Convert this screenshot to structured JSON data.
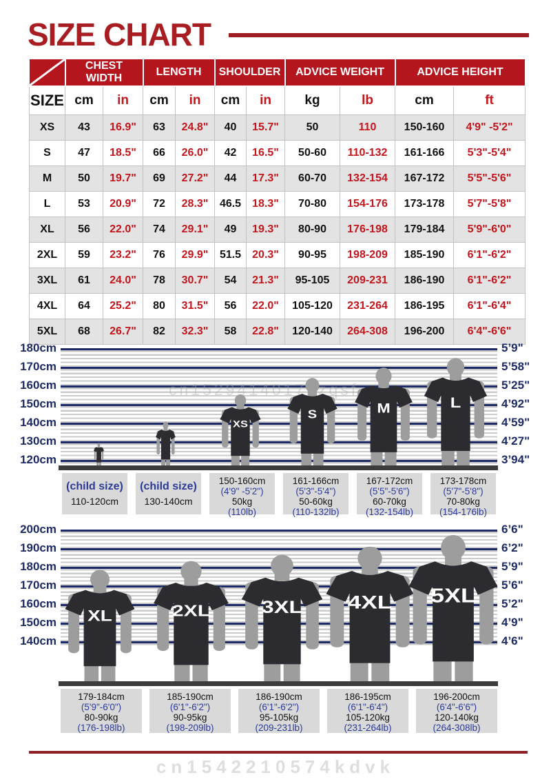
{
  "title": "SIZE CHART",
  "table": {
    "groups": [
      {
        "label": "CHEST WIDTH",
        "span": 2
      },
      {
        "label": "LENGTH",
        "span": 2
      },
      {
        "label": "SHOULDER",
        "span": 2
      },
      {
        "label": "ADVICE WEIGHT",
        "span": 2
      },
      {
        "label": "ADVICE HEIGHT",
        "span": 2
      }
    ],
    "subheader": [
      "SIZE",
      "cm",
      "in",
      "cm",
      "in",
      "cm",
      "in",
      "kg",
      "lb",
      "cm",
      "ft"
    ],
    "rows": [
      [
        "XS",
        "43",
        "16.9\"",
        "63",
        "24.8\"",
        "40",
        "15.7\"",
        "50",
        "110",
        "150-160",
        "4'9\" -5'2\""
      ],
      [
        "S",
        "47",
        "18.5\"",
        "66",
        "26.0\"",
        "42",
        "16.5\"",
        "50-60",
        "110-132",
        "161-166",
        "5'3\"-5'4\""
      ],
      [
        "M",
        "50",
        "19.7\"",
        "69",
        "27.2\"",
        "44",
        "17.3\"",
        "60-70",
        "132-154",
        "167-172",
        "5'5\"-5'6\""
      ],
      [
        "L",
        "53",
        "20.9\"",
        "72",
        "28.3\"",
        "46.5",
        "18.3\"",
        "70-80",
        "154-176",
        "173-178",
        "5'7\"-5'8\""
      ],
      [
        "XL",
        "56",
        "22.0\"",
        "74",
        "29.1\"",
        "49",
        "19.3\"",
        "80-90",
        "176-198",
        "179-184",
        "5'9\"-6'0\""
      ],
      [
        "2XL",
        "59",
        "23.2\"",
        "76",
        "29.9\"",
        "51.5",
        "20.3\"",
        "90-95",
        "198-209",
        "185-190",
        "6'1\"-6'2\""
      ],
      [
        "3XL",
        "61",
        "24.0\"",
        "78",
        "30.7\"",
        "54",
        "21.3\"",
        "95-105",
        "209-231",
        "186-190",
        "6'1\"-6'2\""
      ],
      [
        "4XL",
        "64",
        "25.2\"",
        "80",
        "31.5\"",
        "56",
        "22.0\"",
        "105-120",
        "231-264",
        "186-195",
        "6'1\"-6'4\""
      ],
      [
        "5XL",
        "68",
        "26.7\"",
        "82",
        "32.3\"",
        "58",
        "22.8\"",
        "120-140",
        "264-308",
        "196-200",
        "6'4\"-6'6\""
      ]
    ]
  },
  "diagram1": {
    "left_labels": [
      "180cm",
      "170cm",
      "160cm",
      "150cm",
      "140cm",
      "130cm",
      "120cm"
    ],
    "right_labels": [
      "5’9\"",
      "5’58\"",
      "5’25\"",
      "4’92\"",
      "4’59\"",
      "4’27\"",
      "3’94\""
    ],
    "watermark": "cn15294140179zqsf",
    "figures": [
      {
        "label": ""
      },
      {
        "label": ""
      },
      {
        "label": "XS"
      },
      {
        "label": "S"
      },
      {
        "label": "M"
      },
      {
        "label": "L"
      }
    ],
    "boxes": [
      {
        "child": true,
        "lines": [
          "(child size)",
          "110-120cm"
        ]
      },
      {
        "child": true,
        "lines": [
          "(child size)",
          "130-140cm"
        ]
      },
      {
        "lines": [
          "150-160cm",
          "(4'9\" -5'2\")",
          "50kg",
          "(110lb)"
        ]
      },
      {
        "lines": [
          "161-166cm",
          "(5'3\"-5'4\")",
          "50-60kg",
          "(110-132lb)"
        ]
      },
      {
        "lines": [
          "167-172cm",
          "(5'5\"-5'6\")",
          "60-70kg",
          "(132-154lb)"
        ]
      },
      {
        "lines": [
          "173-178cm",
          "(5'7\"-5'8\")",
          "70-80kg",
          "(154-176lb)"
        ]
      }
    ]
  },
  "diagram2": {
    "left_labels": [
      "200cm",
      "190cm",
      "180cm",
      "170cm",
      "160cm",
      "150cm",
      "140cm"
    ],
    "right_labels": [
      "6’6\"",
      "6’2\"",
      "5’9\"",
      "5’6\"",
      "5’2\"",
      "4’9\"",
      "4’6\""
    ],
    "figures": [
      {
        "label": "XL"
      },
      {
        "label": "2XL"
      },
      {
        "label": "3XL"
      },
      {
        "label": "4XL"
      },
      {
        "label": "5XL"
      }
    ],
    "boxes": [
      {
        "lines": [
          "179-184cm",
          "(5'9\"-6'0\")",
          "80-90kg",
          "(176-198lb)"
        ]
      },
      {
        "lines": [
          "185-190cm",
          "(6'1\"-6'2\")",
          "90-95kg",
          "(198-209lb)"
        ]
      },
      {
        "lines": [
          "186-190cm",
          "(6'1\"-6'2\")",
          "95-105kg",
          "(209-231lb)"
        ]
      },
      {
        "lines": [
          "186-195cm",
          "(6'1\"-6'4\")",
          "105-120kg",
          "(231-264lb)"
        ]
      },
      {
        "lines": [
          "196-200cm",
          "(6'4\"-6'6\")",
          "120-140kg",
          "(264-308lb)"
        ]
      }
    ]
  },
  "bottom_watermark": "cn1542210574kdvk"
}
